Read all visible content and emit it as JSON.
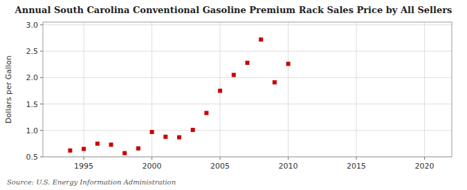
{
  "chart_data": {
    "type": "scatter",
    "title": "Annual South Carolina Conventional Gasoline Premium Rack Sales Price by All Sellers",
    "y_label": "Dollars per Gallon",
    "annotations": [
      "Source: U.S. Energy Information Administration"
    ],
    "x": [
      1994,
      1995,
      1996,
      1997,
      1998,
      1999,
      2000,
      2001,
      2002,
      2003,
      2004,
      2005,
      2006,
      2007,
      2008,
      2009,
      2010
    ],
    "values": [
      0.62,
      0.65,
      0.75,
      0.73,
      0.57,
      0.66,
      0.97,
      0.88,
      0.87,
      1.01,
      1.33,
      1.75,
      2.05,
      2.28,
      2.72,
      1.91,
      2.26
    ],
    "color": "#cc0000",
    "marker": "square",
    "xlim": [
      1992,
      2022
    ],
    "ylim": [
      0.5,
      3.05
    ],
    "xticks": [
      1995,
      2000,
      2005,
      2010,
      2015,
      2020
    ],
    "yticks": [
      0.5,
      {
        "value": 1.0,
        "label": "1.0"
      },
      1.5,
      {
        "value": 2.0,
        "label": "2.0"
      },
      2.5,
      {
        "value": 3.0,
        "label": "3.0"
      }
    ],
    "grid": true
  }
}
